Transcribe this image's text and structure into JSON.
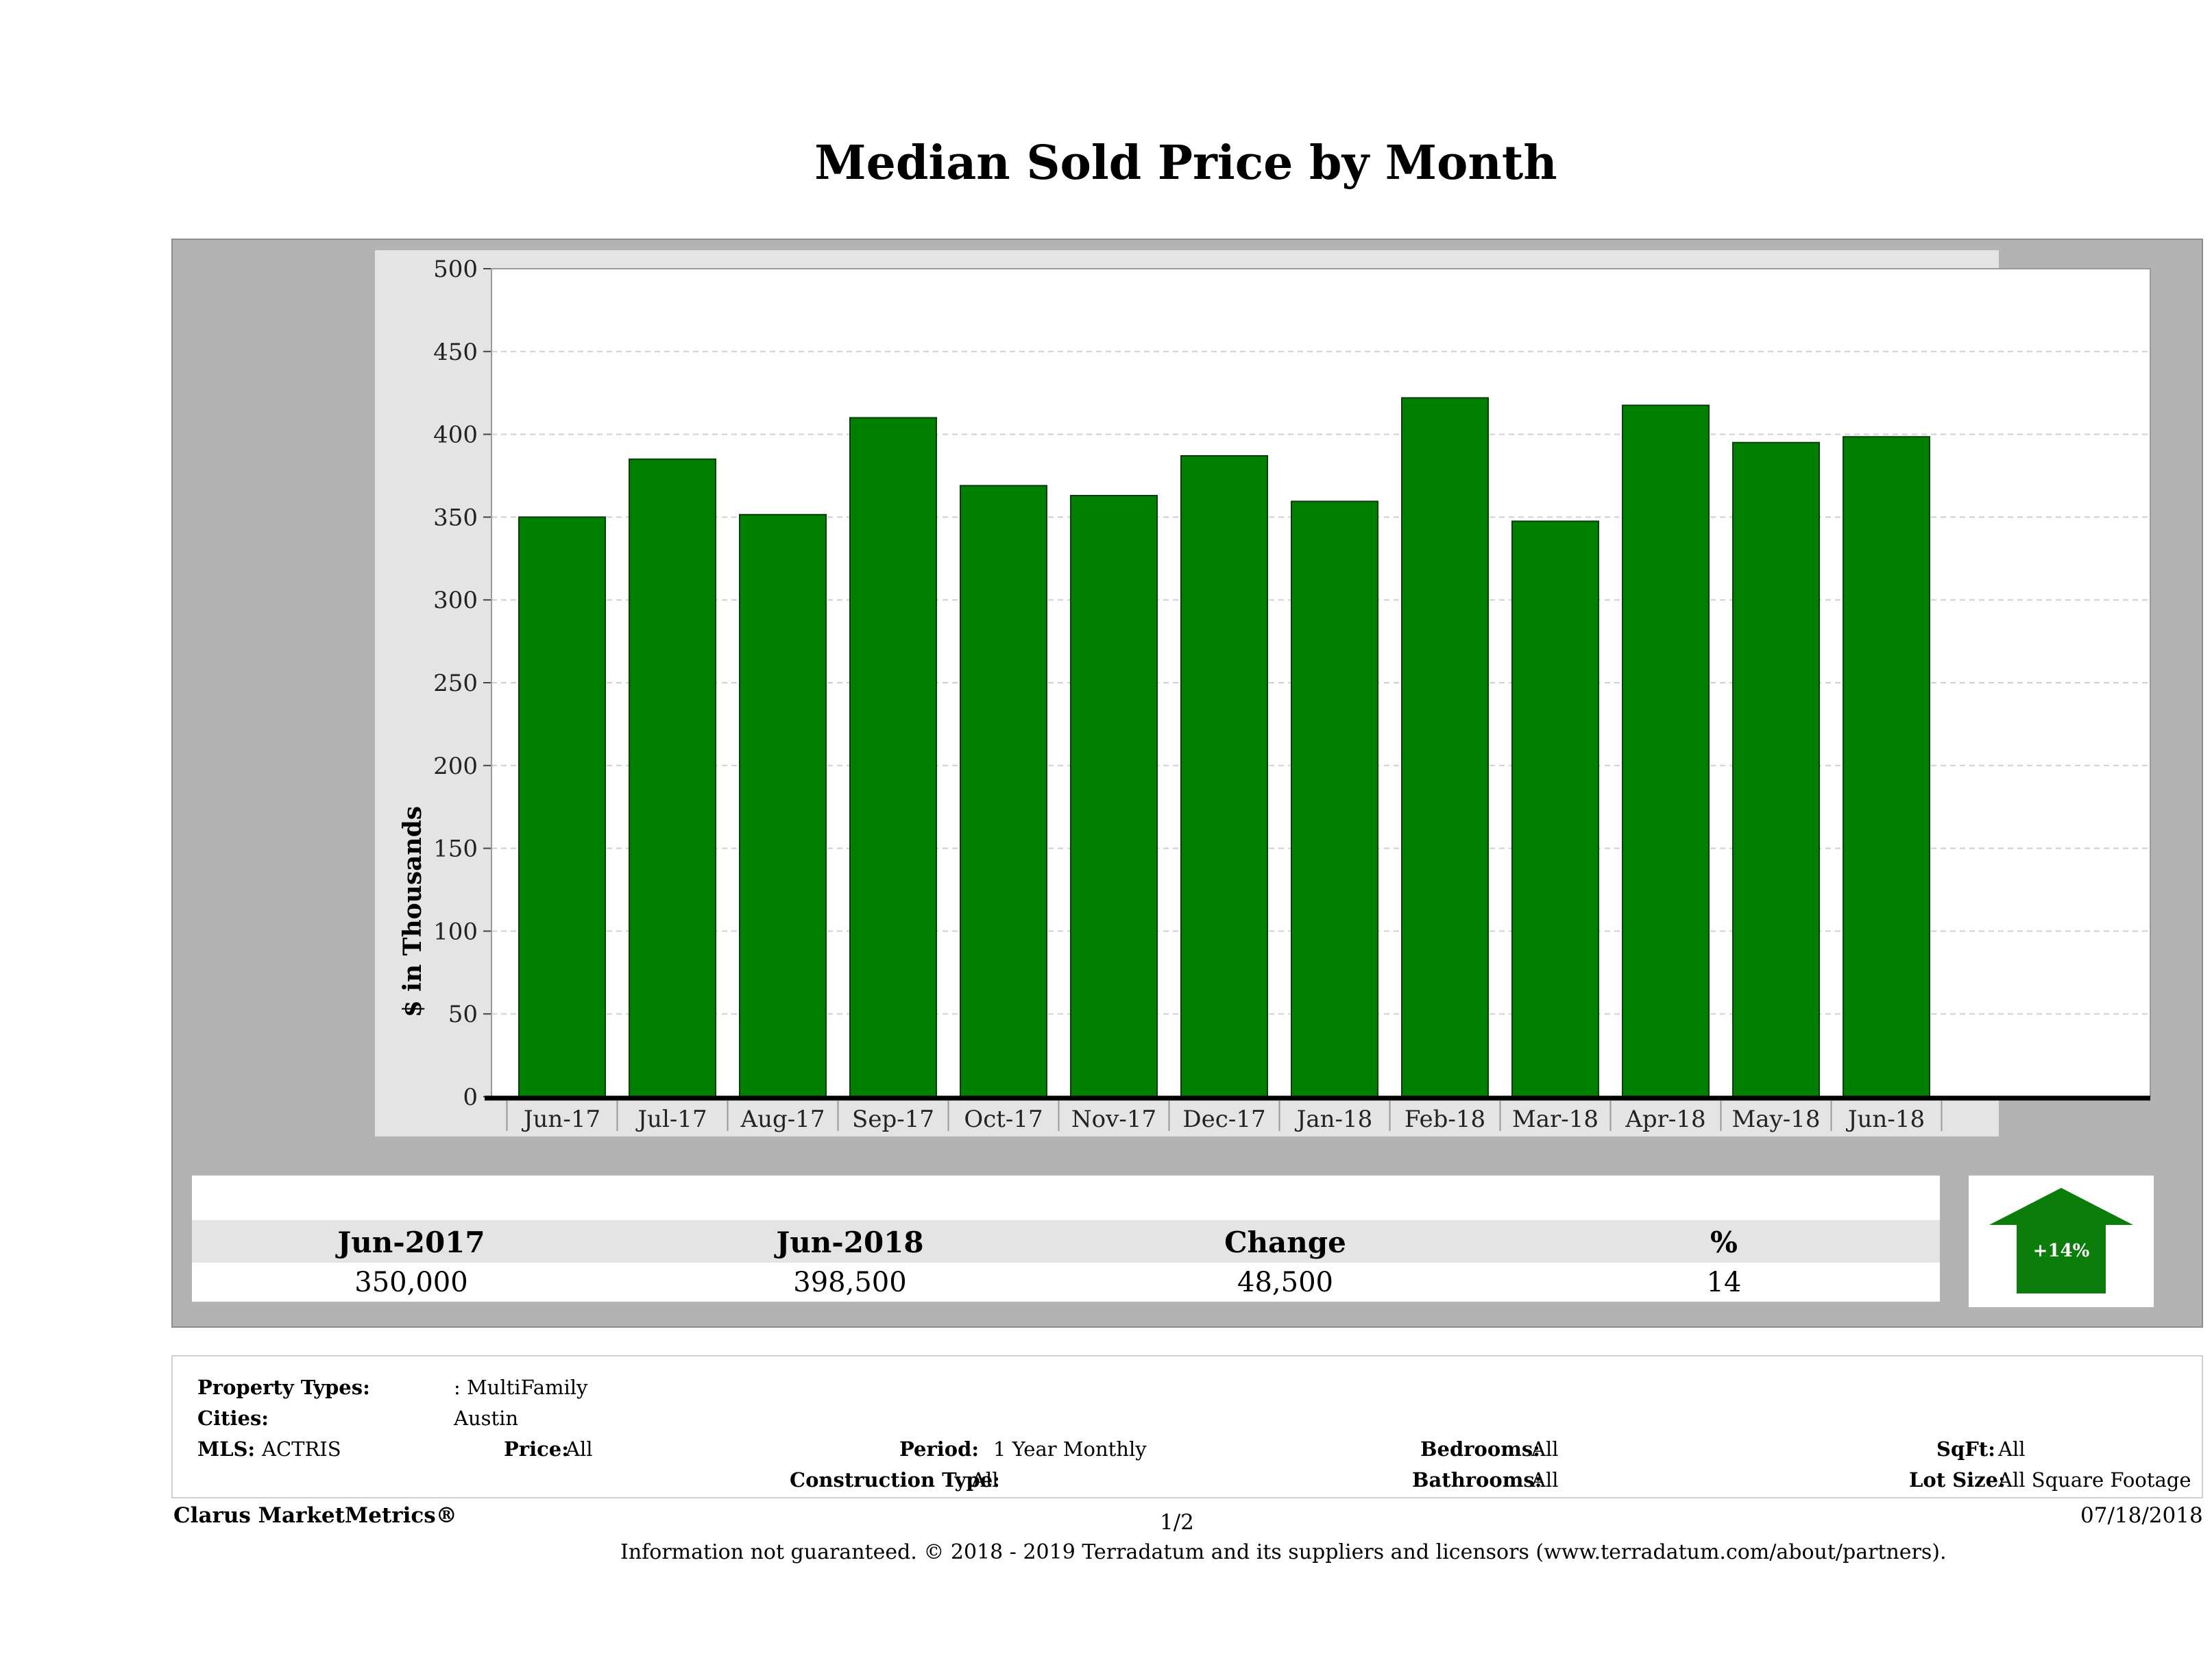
{
  "title": "Median Sold Price by Month",
  "chart_data": {
    "type": "bar",
    "title": "Median Sold Price by Month",
    "ylabel": "$ in Thousands",
    "xlabel": "",
    "categories": [
      "Jun-17",
      "Jul-17",
      "Aug-17",
      "Sep-17",
      "Oct-17",
      "Nov-17",
      "Dec-17",
      "Jan-18",
      "Feb-18",
      "Mar-18",
      "Apr-18",
      "May-18",
      "Jun-18"
    ],
    "values": [
      350,
      385,
      351.5,
      410,
      369,
      363,
      387,
      359.5,
      422,
      347.5,
      417.5,
      395,
      398.5
    ],
    "ylim": [
      0,
      500
    ],
    "yticks": [
      0,
      50,
      100,
      150,
      200,
      250,
      300,
      350,
      400,
      450,
      500
    ],
    "grid": true,
    "bar_color": "#008000"
  },
  "summary": {
    "headers": [
      "Jun-2017",
      "Jun-2018",
      "Change",
      "%"
    ],
    "values": [
      "350,000",
      "398,500",
      "48,500",
      "14"
    ],
    "badge": "+14%",
    "badge_color": "#0a7d0a"
  },
  "filters": {
    "property_types_label": "Property Types:",
    "property_types_value": ": MultiFamily",
    "cities_label": "Cities:",
    "cities_value": "Austin",
    "mls_label": "MLS:",
    "mls_value": "ACTRIS",
    "price_label": "Price:",
    "price_value": "All",
    "period_label": "Period:",
    "period_value": "1 Year Monthly",
    "construction_label": "Construction Type:",
    "construction_value": "All",
    "bedrooms_label": "Bedrooms:",
    "bedrooms_value": "All",
    "bathrooms_label": "Bathrooms:",
    "bathrooms_value": "All",
    "sqft_label": "SqFt:",
    "sqft_value": "All",
    "lot_size_label": "Lot Size:",
    "lot_size_value": "All Square Footage"
  },
  "footer": {
    "brand": "Clarus MarketMetrics®",
    "page": "1/2",
    "date": "07/18/2018",
    "disclaimer": "Information not guaranteed. © 2018 - 2019 Terradatum and its suppliers and licensors (www.terradatum.com/about/partners)."
  }
}
